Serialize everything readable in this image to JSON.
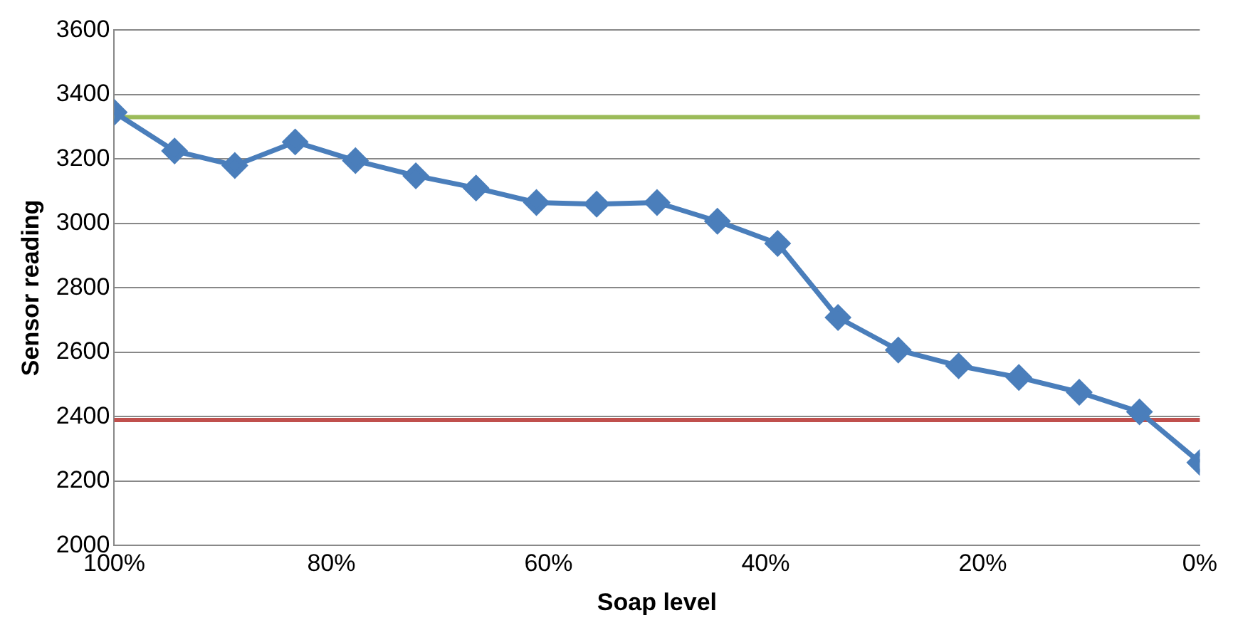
{
  "chart_data": {
    "type": "line",
    "xlabel": "Soap level",
    "ylabel": "Sensor reading",
    "x": [
      100,
      94.44,
      88.89,
      83.33,
      77.78,
      72.22,
      66.67,
      61.11,
      55.56,
      50,
      44.44,
      38.89,
      33.33,
      27.78,
      22.22,
      16.67,
      11.11,
      5.56,
      0
    ],
    "series": [
      {
        "color": "#4a7ebb",
        "values": [
          3345,
          3225,
          3180,
          3253,
          3195,
          3148,
          3110,
          3065,
          3060,
          3065,
          3007,
          2938,
          2708,
          2607,
          2558,
          2522,
          2476,
          2415,
          2258
        ]
      }
    ],
    "xlim": [
      100,
      0
    ],
    "xticks": [
      {
        "value": 100,
        "label": "100%"
      },
      {
        "value": 80,
        "label": "80%"
      },
      {
        "value": 60,
        "label": "60%"
      },
      {
        "value": 40,
        "label": "40%"
      },
      {
        "value": 20,
        "label": "20%"
      },
      {
        "value": 0,
        "label": "0%"
      }
    ],
    "ylim": [
      2000,
      3600
    ],
    "yticks": [
      2000,
      2200,
      2400,
      2600,
      2800,
      3000,
      3200,
      3400,
      3600
    ],
    "ref_lines": [
      {
        "axis": "y",
        "value": 3330,
        "color": "#9bbb59"
      },
      {
        "axis": "y",
        "value": 2390,
        "color": "#c0504d"
      }
    ],
    "grid": "y",
    "legend": false,
    "marker": "diamond",
    "line_style": "solid"
  }
}
